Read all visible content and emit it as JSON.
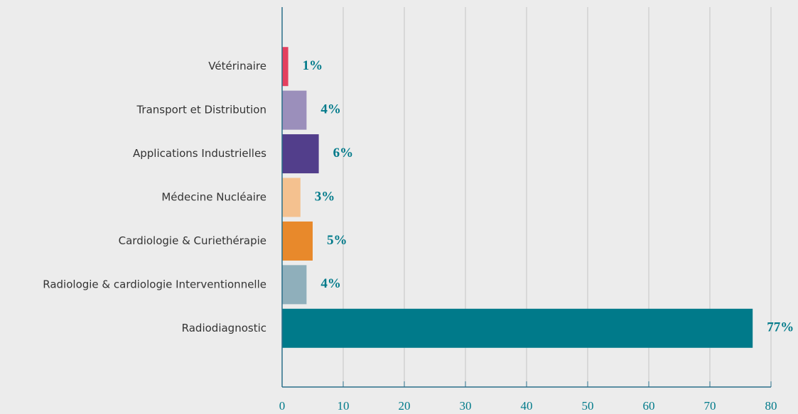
{
  "chart_data": {
    "type": "barh",
    "categories": [
      "Vétérinaire",
      "Transport et Distribution",
      "Applications Industrielles",
      "Médecine Nucléaire",
      "Cardiologie & Curiethérapie",
      "Radiologie & cardiologie Interventionnelle",
      "Radiodiagnostic"
    ],
    "values": [
      1,
      4,
      6,
      3,
      5,
      4,
      77
    ],
    "value_labels": [
      "1%",
      "4%",
      "6%",
      "3%",
      "5%",
      "4%",
      "77%"
    ],
    "colors": [
      "#e4405f",
      "#9b8fbb",
      "#523e8b",
      "#f4c18f",
      "#e8892b",
      "#8fafbb",
      "#007a8a"
    ],
    "xlim": [
      0,
      80
    ],
    "xticks": [
      0,
      10,
      20,
      30,
      40,
      50,
      60,
      70,
      80
    ],
    "grid": true
  }
}
